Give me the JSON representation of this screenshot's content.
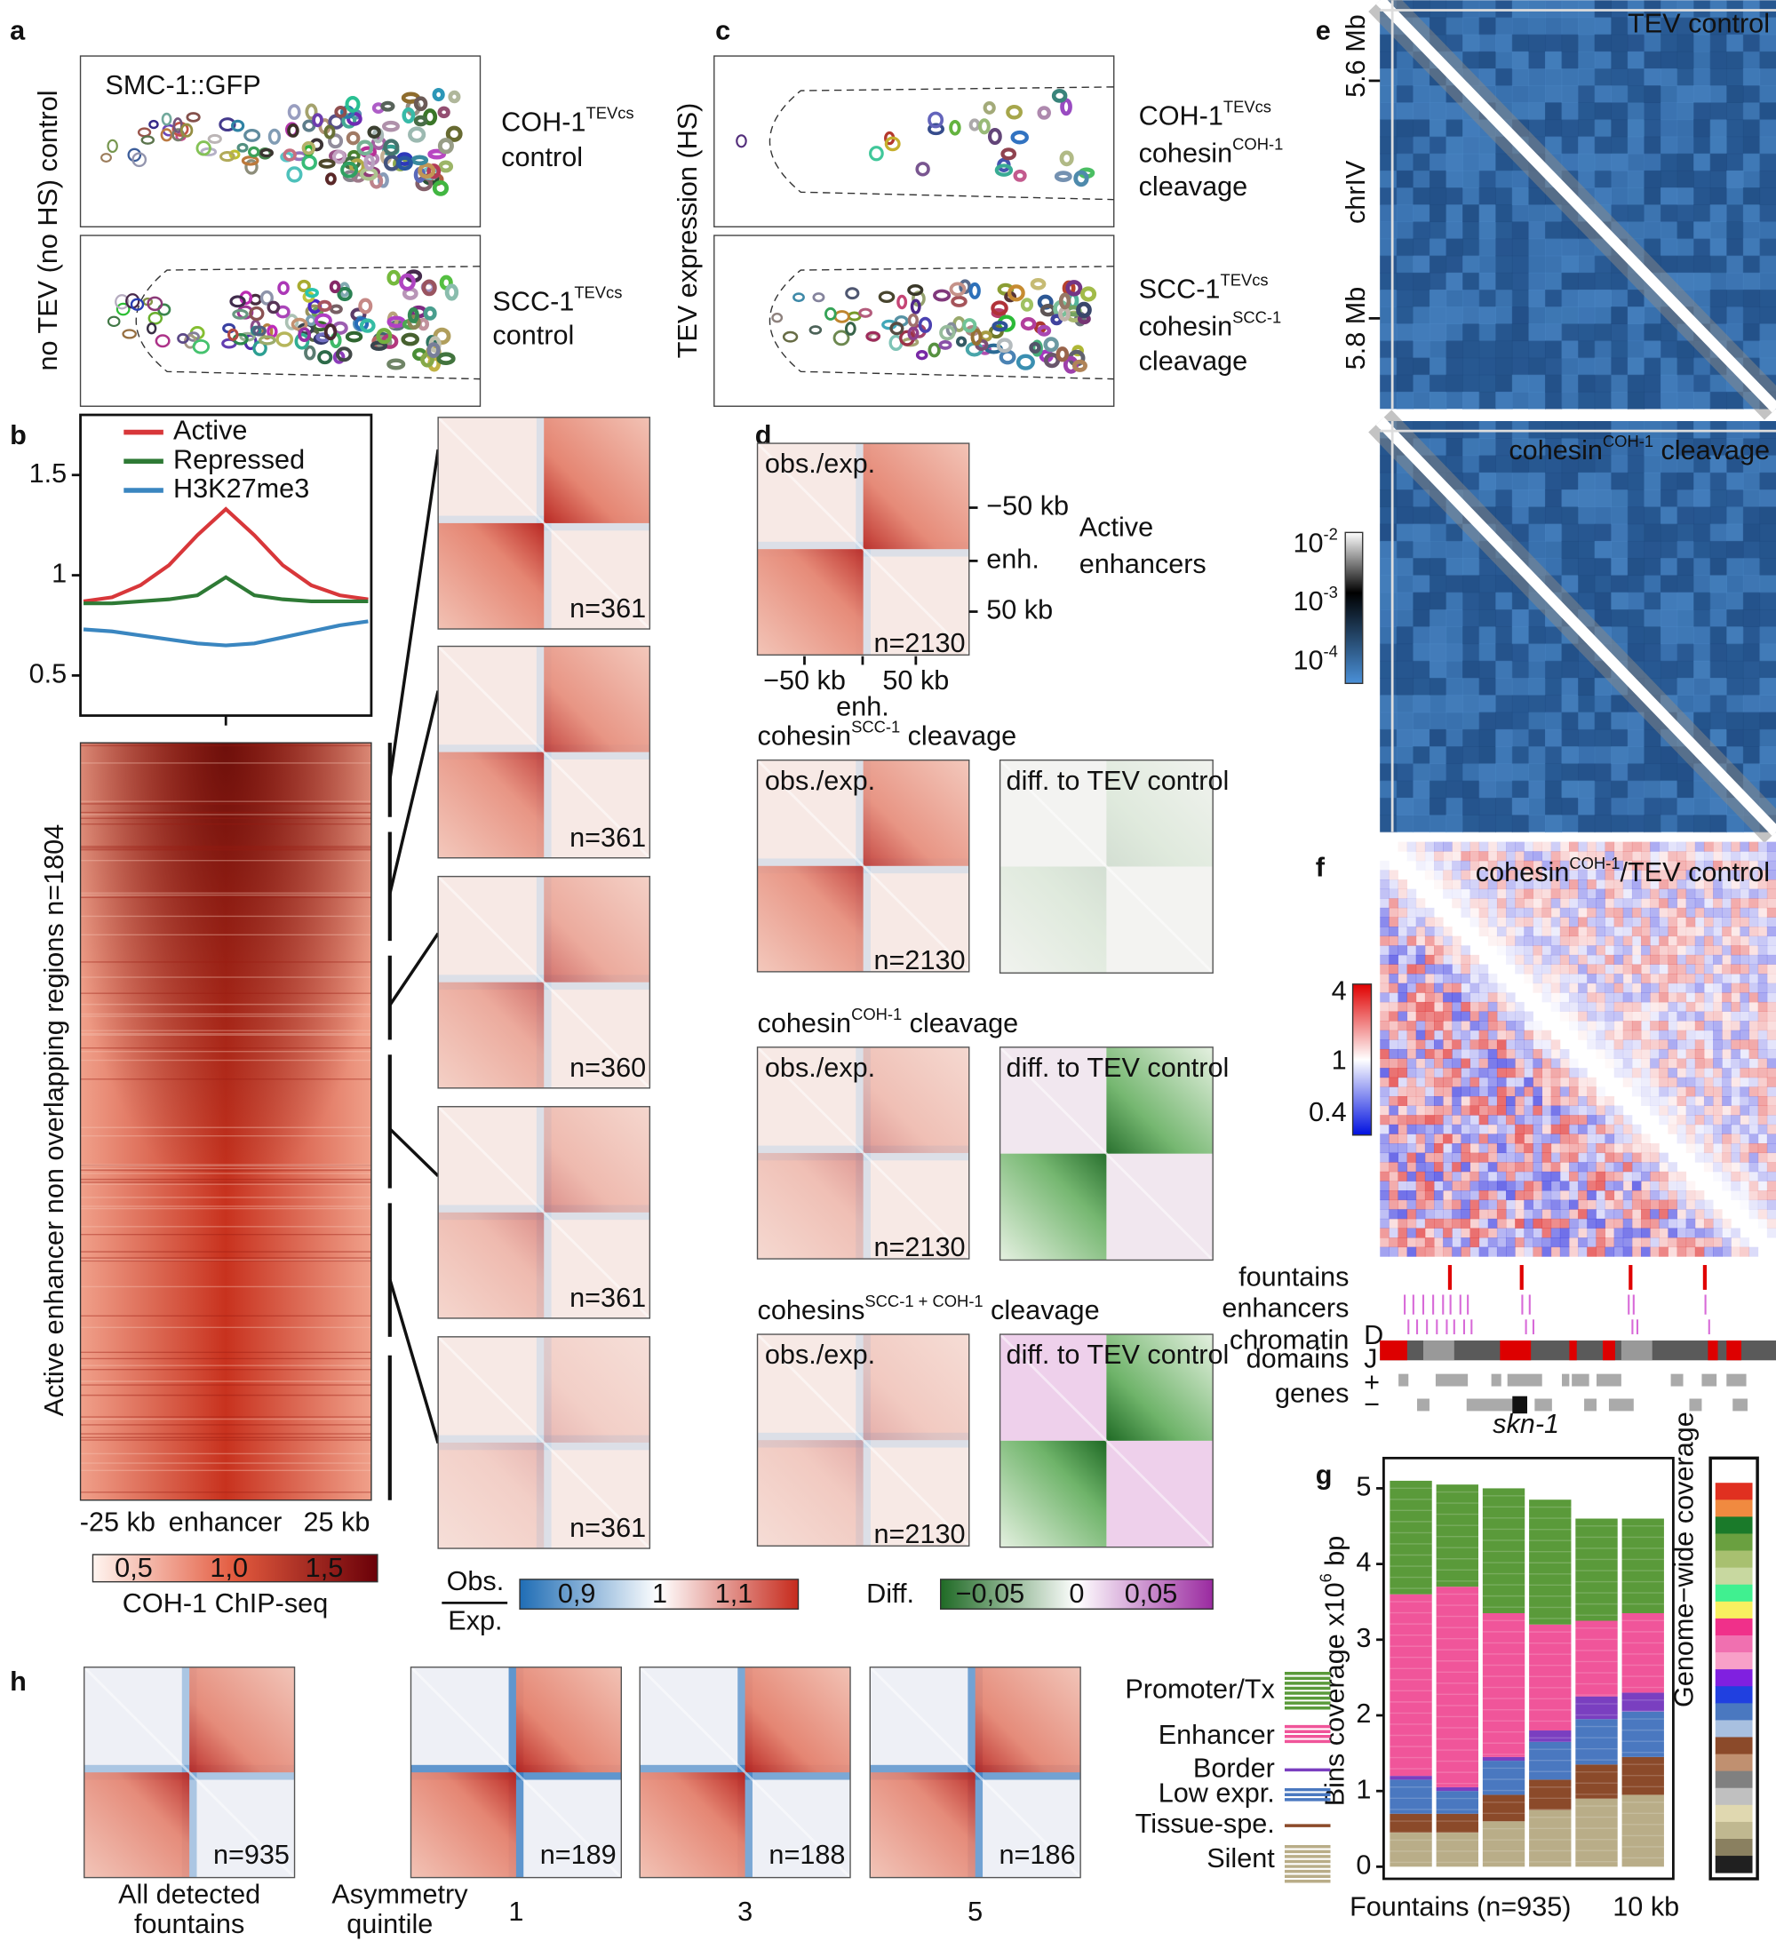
{
  "a": {
    "letter": "a",
    "side_label": "no TEV (no HS) control",
    "image_label": "SMC-1::GFP",
    "rows": [
      {
        "protein": "COH-1",
        "tag": "TEVcs",
        "condition": "control"
      },
      {
        "protein": "SCC-1",
        "tag": "TEVcs",
        "condition": "control"
      }
    ]
  },
  "c": {
    "letter": "c",
    "side_label": "TEV expression (HS)",
    "rows": [
      {
        "protein": "COH-1",
        "tag": "TEVcs",
        "complex": "cohesin",
        "complex_sub": "COH-1",
        "condition": "cleavage"
      },
      {
        "protein": "SCC-1",
        "tag": "TEVcs",
        "complex": "cohesin",
        "complex_sub": "SCC-1",
        "condition": "cleavage"
      }
    ]
  },
  "b": {
    "letter": "b",
    "profile": {
      "type": "line",
      "x": [
        -25,
        -20,
        -15,
        -10,
        -5,
        0,
        5,
        10,
        15,
        20,
        25
      ],
      "ylim": [
        0.3,
        1.8
      ],
      "yticks": [
        0.5,
        1,
        1.5
      ],
      "series": [
        {
          "name": "Active",
          "color": "#d8373a",
          "values": [
            0.87,
            0.89,
            0.95,
            1.05,
            1.2,
            1.33,
            1.2,
            1.05,
            0.95,
            0.9,
            0.88
          ]
        },
        {
          "name": "Repressed",
          "color": "#2e7a35",
          "values": [
            0.86,
            0.86,
            0.87,
            0.88,
            0.9,
            0.99,
            0.9,
            0.88,
            0.87,
            0.87,
            0.87
          ]
        },
        {
          "name": "H3K27me3",
          "color": "#3a86c0",
          "values": [
            0.73,
            0.72,
            0.7,
            0.68,
            0.66,
            0.65,
            0.66,
            0.69,
            0.72,
            0.75,
            0.77
          ]
        }
      ]
    },
    "heatmap": {
      "label": "Active enhancer non overlapping regions n=1804",
      "x_labels": [
        "-25 kb",
        "enhancer",
        "25 kb"
      ],
      "colorbar_label": "COH-1 ChIP-seq",
      "colorbar_ticks": [
        "0,5",
        "1,0",
        "1,5"
      ]
    },
    "pileup_counts": [
      "n=361",
      "n=361",
      "n=360",
      "n=361",
      "n=361"
    ],
    "obs_exp_legend": {
      "numerator": "Obs.",
      "denominator": "Exp.",
      "ticks": [
        "0,9",
        "1",
        "1,1"
      ]
    },
    "diff_legend": {
      "label": "Diff.",
      "ticks": [
        "−0,05",
        "0",
        "0,05"
      ]
    }
  },
  "d": {
    "letter": "d",
    "map_label": "obs./exp.",
    "diff_label": "diff. to TEV control",
    "count": "n=2130",
    "y_labels": [
      "−50 kb",
      "enh.",
      "50 kb"
    ],
    "x_labels": [
      "−50 kb",
      "enh.",
      "50 kb"
    ],
    "row_title": [
      "Active",
      "enhancers"
    ],
    "conditions": [
      {
        "prefix": "cohesin",
        "sup": "SCC-1",
        "suffix": "cleavage"
      },
      {
        "prefix": "cohesin",
        "sup": "COH-1",
        "suffix": "cleavage"
      },
      {
        "prefix": "cohesins",
        "sup": "SCC-1 + COH-1",
        "suffix": "cleavage"
      }
    ]
  },
  "e": {
    "letter": "e",
    "control_title": "TEV control",
    "cleavage_title": {
      "prefix": "cohesin",
      "sup": "COH-1",
      "suffix": "cleavage"
    },
    "y_labels": [
      "5.6 Mb",
      "chrIV",
      "5.8 Mb"
    ],
    "colorbar": [
      {
        "base": "10",
        "exp": "-2"
      },
      {
        "base": "10",
        "exp": "-3"
      },
      {
        "base": "10",
        "exp": "-4"
      }
    ]
  },
  "f": {
    "letter": "f",
    "title": {
      "prefix": "cohesin",
      "sup": "COH-1",
      "suffix": "/TEV control"
    },
    "colorbar_ticks": [
      "4",
      "1",
      "0.4"
    ],
    "tracks": {
      "fountains": "fountains",
      "enhancers": "enhancers",
      "enhancer_rows": [
        "D",
        "J"
      ],
      "domains": [
        "chromatin",
        "domains"
      ],
      "genes": "genes",
      "strands": [
        "+",
        "−"
      ],
      "gene_name": "skn-1"
    }
  },
  "g": {
    "letter": "g",
    "chart": {
      "type": "bar",
      "stacked": true,
      "ylabel": {
        "text": "Bins coverage x10",
        "sup": "6",
        "unit": "bp"
      },
      "ylim": [
        -0.16,
        5.4
      ],
      "yticks": [
        0,
        1,
        2,
        3,
        4,
        5
      ],
      "x_labels": [
        "Fountains (n=935)",
        "10 kb"
      ],
      "side_label": "Genome−wide coverage",
      "series": [
        {
          "name": "Silent",
          "color": "#b9ad88",
          "values": [
            0.45,
            0.45,
            0.6,
            0.75,
            0.9,
            0.95
          ]
        },
        {
          "name": "Tissue-spe.",
          "color": "#8b4a2a",
          "values": [
            0.25,
            0.25,
            0.35,
            0.4,
            0.45,
            0.5
          ]
        },
        {
          "name": "Low expr.",
          "color": "#4a78c0",
          "values": [
            0.45,
            0.3,
            0.45,
            0.5,
            0.6,
            0.6
          ]
        },
        {
          "name": "Border",
          "color": "#7a3fc0",
          "values": [
            0.05,
            0.05,
            0.05,
            0.15,
            0.3,
            0.25
          ]
        },
        {
          "name": "Enhancer",
          "color": "#f0559a",
          "values": [
            2.4,
            2.65,
            1.9,
            1.4,
            1.0,
            1.05
          ]
        },
        {
          "name": "Promoter/Tx",
          "color": "#5a9a3a",
          "values": [
            1.5,
            1.35,
            1.65,
            1.65,
            1.35,
            1.25
          ]
        }
      ]
    }
  },
  "h": {
    "letter": "h",
    "counts": [
      "n=935",
      "n=189",
      "n=188",
      "n=186"
    ],
    "first_label": [
      "All detected",
      "fountains"
    ],
    "quintile_label": [
      "Asymmetry",
      "quintile"
    ],
    "quintiles": [
      "1",
      "3",
      "5"
    ]
  }
}
